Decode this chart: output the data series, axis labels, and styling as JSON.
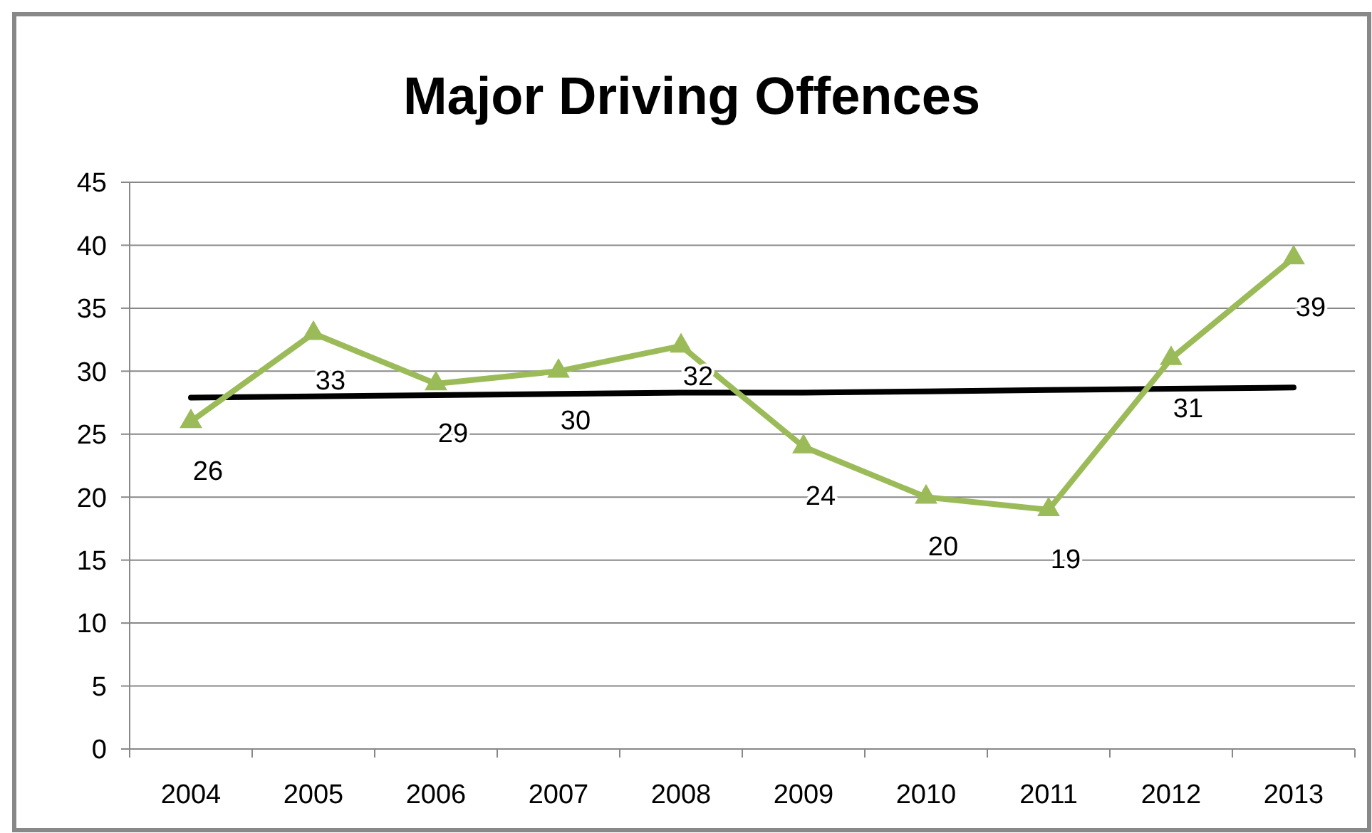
{
  "chart_data": {
    "type": "line",
    "title": "Major Driving Offences",
    "categories": [
      "2004",
      "2005",
      "2006",
      "2007",
      "2008",
      "2009",
      "2010",
      "2011",
      "2012",
      "2013"
    ],
    "series": [
      {
        "color": "#9bbb59",
        "values": [
          26,
          33,
          29,
          30,
          32,
          24,
          20,
          19,
          31,
          39
        ],
        "marker": "triangle",
        "value_labels": [
          "26",
          "33",
          "29",
          "30",
          "32",
          "24",
          "20",
          "19",
          "31",
          "39"
        ]
      },
      {
        "color": "#000000",
        "values": [
          27.9,
          28.0,
          28.1,
          28.2,
          28.3,
          28.3,
          28.4,
          28.5,
          28.6,
          28.7
        ],
        "marker": "none"
      }
    ],
    "ylim": [
      0,
      45
    ],
    "yticks": [
      0,
      5,
      10,
      15,
      20,
      25,
      30,
      35,
      40,
      45
    ],
    "grid": "y",
    "line_style": "solid"
  }
}
